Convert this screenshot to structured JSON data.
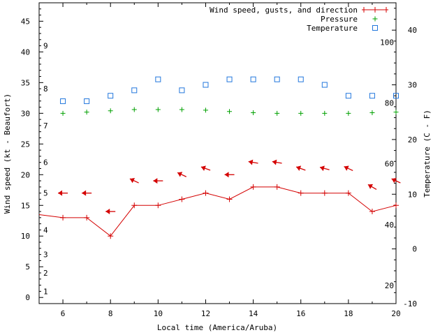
{
  "chart_data": {
    "type": "line",
    "xlabel": "Local time (America/Aruba)",
    "ylabel_left": "Wind speed (kt - Beaufort)",
    "ylabel_right": "Temperature (C - F)",
    "xlim": [
      5,
      20
    ],
    "ylim_left": [
      -1,
      48
    ],
    "ylim_right": [
      -10,
      45
    ],
    "x_ticks": [
      6,
      8,
      10,
      12,
      14,
      16,
      18,
      20
    ],
    "y_left_ticks": [
      0,
      5,
      10,
      15,
      20,
      25,
      30,
      35,
      40,
      45
    ],
    "y_right_ticks": [
      -10,
      0,
      10,
      20,
      30,
      40
    ],
    "beaufort_labels": [
      {
        "label": "1",
        "kt": 1
      },
      {
        "label": "2",
        "kt": 4
      },
      {
        "label": "3",
        "kt": 7
      },
      {
        "label": "4",
        "kt": 11
      },
      {
        "label": "5",
        "kt": 17
      },
      {
        "label": "6",
        "kt": 22
      },
      {
        "label": "7",
        "kt": 28
      },
      {
        "label": "8",
        "kt": 34
      },
      {
        "label": "9",
        "kt": 41
      }
    ],
    "fahrenheit_labels": [
      {
        "label": "20",
        "c": -6.7
      },
      {
        "label": "40",
        "c": 4.4
      },
      {
        "label": "60",
        "c": 15.6
      },
      {
        "label": "80",
        "c": 26.7
      },
      {
        "label": "100",
        "c": 37.8
      }
    ],
    "legend": {
      "position": "top-right",
      "wind": "Wind speed, gusts, and direction",
      "pressure": "Pressure",
      "temperature": "Temperature"
    },
    "colors": {
      "wind": "#d40000",
      "pressure": "#00a000",
      "temperature": "#2277dd"
    },
    "wind_speed": {
      "x": [
        5,
        6,
        7,
        8,
        9,
        10,
        11,
        12,
        13,
        14,
        15,
        16,
        17,
        18,
        19,
        20
      ],
      "values": [
        13.5,
        13,
        13,
        10,
        15,
        15,
        16,
        17,
        16,
        18,
        18,
        17,
        17,
        17,
        14,
        15
      ]
    },
    "wind_direction_arrows": [
      {
        "x": 6,
        "kt": 17,
        "angle": 180
      },
      {
        "x": 7,
        "kt": 17,
        "angle": 180
      },
      {
        "x": 8,
        "kt": 14,
        "angle": 180
      },
      {
        "x": 9,
        "kt": 19,
        "angle": 205
      },
      {
        "x": 10,
        "kt": 19,
        "angle": 180
      },
      {
        "x": 11,
        "kt": 20,
        "angle": 205
      },
      {
        "x": 12,
        "kt": 21,
        "angle": 200
      },
      {
        "x": 13,
        "kt": 20,
        "angle": 180
      },
      {
        "x": 14,
        "kt": 22,
        "angle": 190
      },
      {
        "x": 15,
        "kt": 22,
        "angle": 190
      },
      {
        "x": 16,
        "kt": 21,
        "angle": 200
      },
      {
        "x": 17,
        "kt": 21,
        "angle": 195
      },
      {
        "x": 18,
        "kt": 21,
        "angle": 205
      },
      {
        "x": 19,
        "kt": 18,
        "angle": 210
      },
      {
        "x": 20,
        "kt": 19,
        "angle": 205
      }
    ],
    "pressure": {
      "x": [
        6,
        7,
        8,
        9,
        10,
        11,
        12,
        13,
        14,
        15,
        16,
        17,
        18,
        19,
        20
      ],
      "kt_position": [
        30,
        30.2,
        30.4,
        30.6,
        30.6,
        30.6,
        30.5,
        30.3,
        30.1,
        30,
        30,
        30,
        30,
        30.1,
        30.2
      ]
    },
    "temperature": {
      "x": [
        6,
        7,
        8,
        9,
        10,
        11,
        12,
        13,
        14,
        15,
        16,
        17,
        18,
        19,
        20
      ],
      "values_c": [
        27,
        27,
        28,
        29,
        31,
        29,
        30,
        31,
        31,
        31,
        31,
        30,
        28,
        28,
        28
      ]
    }
  }
}
